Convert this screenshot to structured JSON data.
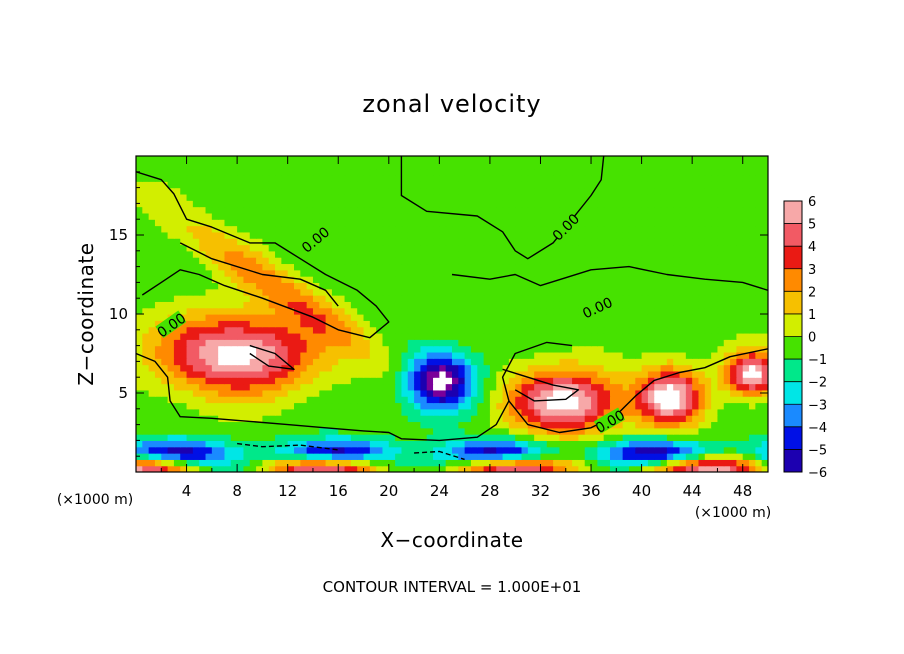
{
  "chart_data": {
    "type": "heatmap",
    "title": "zonal velocity",
    "xlabel": "X−coordinate",
    "ylabel": "Z−coordinate",
    "x_unit": "(×1000 m)",
    "y_unit": "(×1000 m)",
    "xlim": [
      0,
      50
    ],
    "ylim": [
      0,
      20
    ],
    "x_ticks": [
      "4",
      "8",
      "12",
      "16",
      "20",
      "24",
      "28",
      "32",
      "36",
      "40",
      "44",
      "48"
    ],
    "y_ticks": [
      "5",
      "10",
      "15"
    ],
    "colorbar": {
      "labels": [
        "6",
        "5",
        "4",
        "3",
        "2",
        "1",
        "0",
        "−1",
        "−2",
        "−3",
        "−4",
        "−5",
        "−6"
      ],
      "range": [
        -6,
        6
      ]
    },
    "contour_labels": [
      "0.00",
      "0.00",
      "0.00",
      "0.00",
      "0.00"
    ],
    "footnote": "CONTOUR INTERVAL = 1.000E+01",
    "features": [
      {
        "kind": "positive_core",
        "x": [
          2,
          14
        ],
        "z": [
          5.5,
          9.5
        ],
        "value": 7
      },
      {
        "kind": "positive_core",
        "x": [
          30,
          38
        ],
        "z": [
          3,
          6
        ],
        "value": 7
      },
      {
        "kind": "positive_core",
        "x": [
          40.5,
          44
        ],
        "z": [
          3.5,
          6
        ],
        "value": 7
      },
      {
        "kind": "positive_core",
        "x": [
          47.5,
          50
        ],
        "z": [
          5.5,
          7
        ],
        "value": 7
      },
      {
        "kind": "negative_core",
        "x": [
          22,
          26
        ],
        "z": [
          4.5,
          7
        ],
        "value": -7
      },
      {
        "kind": "jet",
        "x": [
          3,
          19
        ],
        "z": [
          4,
          16
        ],
        "value": 3
      }
    ]
  }
}
